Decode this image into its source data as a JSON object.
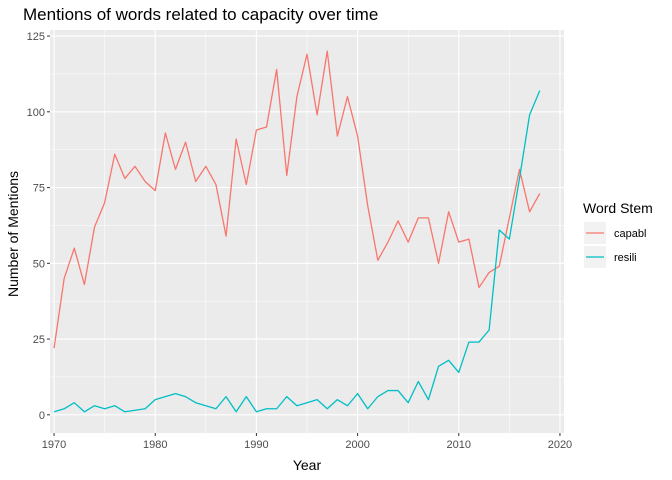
{
  "chart_data": {
    "type": "line",
    "title": "Mentions of words related to capacity over time",
    "xlabel": "Year",
    "ylabel": "Number of Mentions",
    "xlim": [
      1969.6,
      2020.4
    ],
    "ylim": [
      -6,
      127
    ],
    "x_ticks": [
      1970,
      1980,
      1990,
      2000,
      2010,
      2020
    ],
    "y_ticks": [
      0,
      25,
      50,
      75,
      100,
      125
    ],
    "grid": true,
    "legend": {
      "title": "Word Stem",
      "position": "right"
    },
    "x": [
      1970,
      1971,
      1972,
      1973,
      1974,
      1975,
      1976,
      1977,
      1978,
      1979,
      1980,
      1981,
      1982,
      1983,
      1984,
      1985,
      1986,
      1987,
      1988,
      1989,
      1990,
      1991,
      1992,
      1993,
      1994,
      1995,
      1996,
      1997,
      1998,
      1999,
      2000,
      2001,
      2002,
      2003,
      2004,
      2005,
      2006,
      2007,
      2008,
      2009,
      2010,
      2011,
      2012,
      2013,
      2014,
      2015,
      2016,
      2017,
      2018
    ],
    "series": [
      {
        "name": "capabl",
        "color": "#F8766D",
        "values": [
          22,
          45,
          55,
          43,
          62,
          70,
          86,
          78,
          82,
          77,
          74,
          93,
          81,
          90,
          77,
          82,
          76,
          59,
          91,
          76,
          94,
          95,
          114,
          79,
          105,
          119,
          99,
          120,
          92,
          105,
          92,
          69,
          51,
          57,
          64,
          57,
          65,
          65,
          50,
          67,
          57,
          58,
          42,
          47,
          49,
          65,
          81,
          67,
          73
        ]
      },
      {
        "name": "resili",
        "color": "#00BFC4",
        "values": [
          1,
          2,
          4,
          1,
          3,
          2,
          3,
          1,
          1.5,
          2,
          5,
          6,
          7,
          6,
          4,
          3,
          2,
          6,
          1,
          6,
          1,
          2,
          2,
          6,
          3,
          4,
          5,
          2,
          5,
          3,
          7,
          2,
          6,
          8,
          8,
          4,
          11,
          5,
          16,
          18,
          14,
          24,
          24,
          28,
          61,
          58,
          78,
          99,
          107
        ]
      }
    ]
  }
}
